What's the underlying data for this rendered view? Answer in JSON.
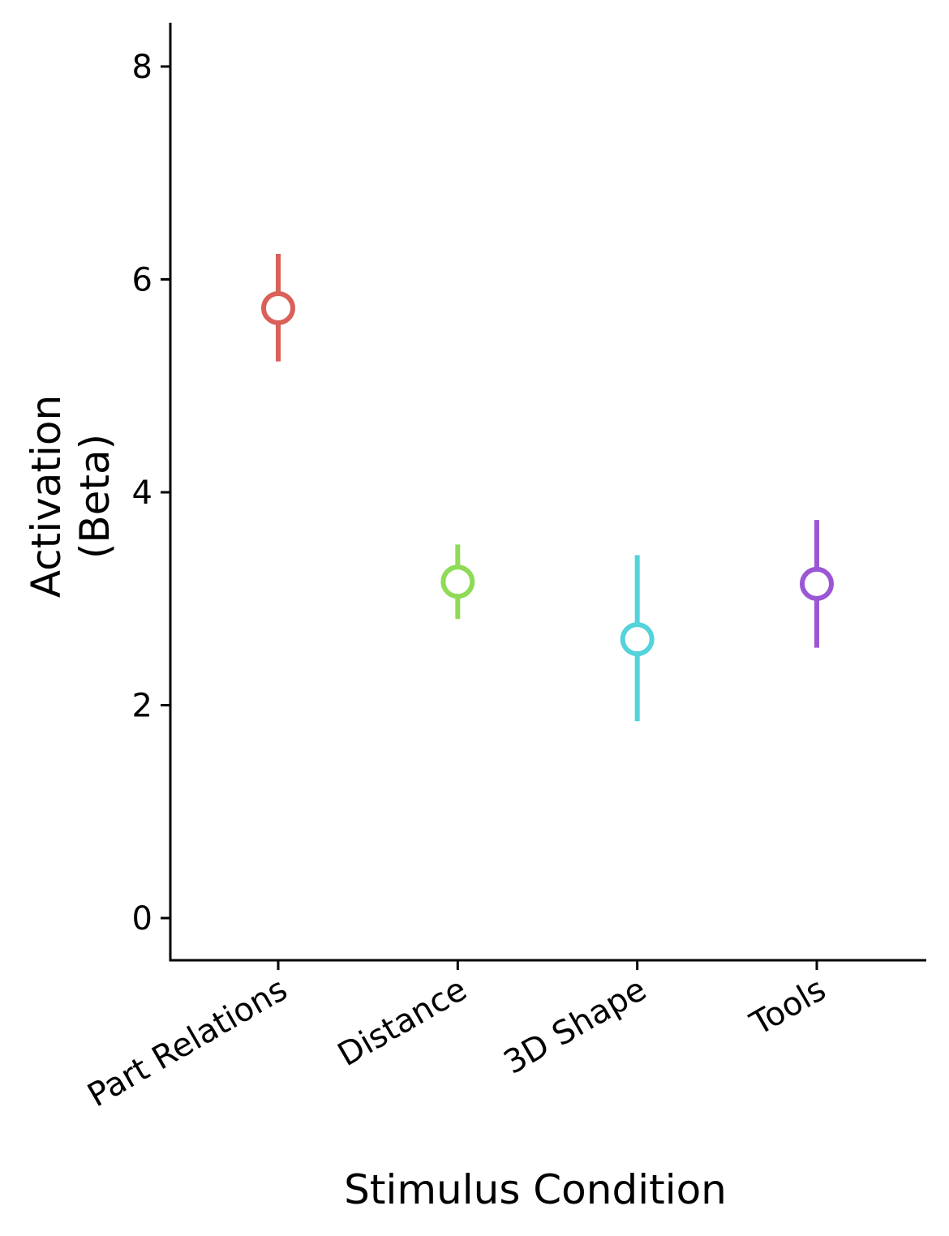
{
  "chart_data": {
    "type": "scatter",
    "xlabel": "Stimulus Condition",
    "ylabel_lines": [
      "Activation",
      "(Beta)"
    ],
    "categories": [
      "Part Relations",
      "Distance",
      "3D Shape",
      "Tools"
    ],
    "values": [
      5.73,
      3.16,
      2.62,
      3.14
    ],
    "error_low": [
      5.23,
      2.81,
      1.85,
      2.54
    ],
    "error_high": [
      6.24,
      3.51,
      3.41,
      3.74
    ],
    "colors": [
      "#d9615a",
      "#8fdb57",
      "#54d3db",
      "#9b57d3"
    ],
    "ylim": [
      -0.4,
      8.4
    ],
    "yticks": [
      0,
      2,
      4,
      6,
      8
    ],
    "grid": false,
    "legend": "none"
  }
}
